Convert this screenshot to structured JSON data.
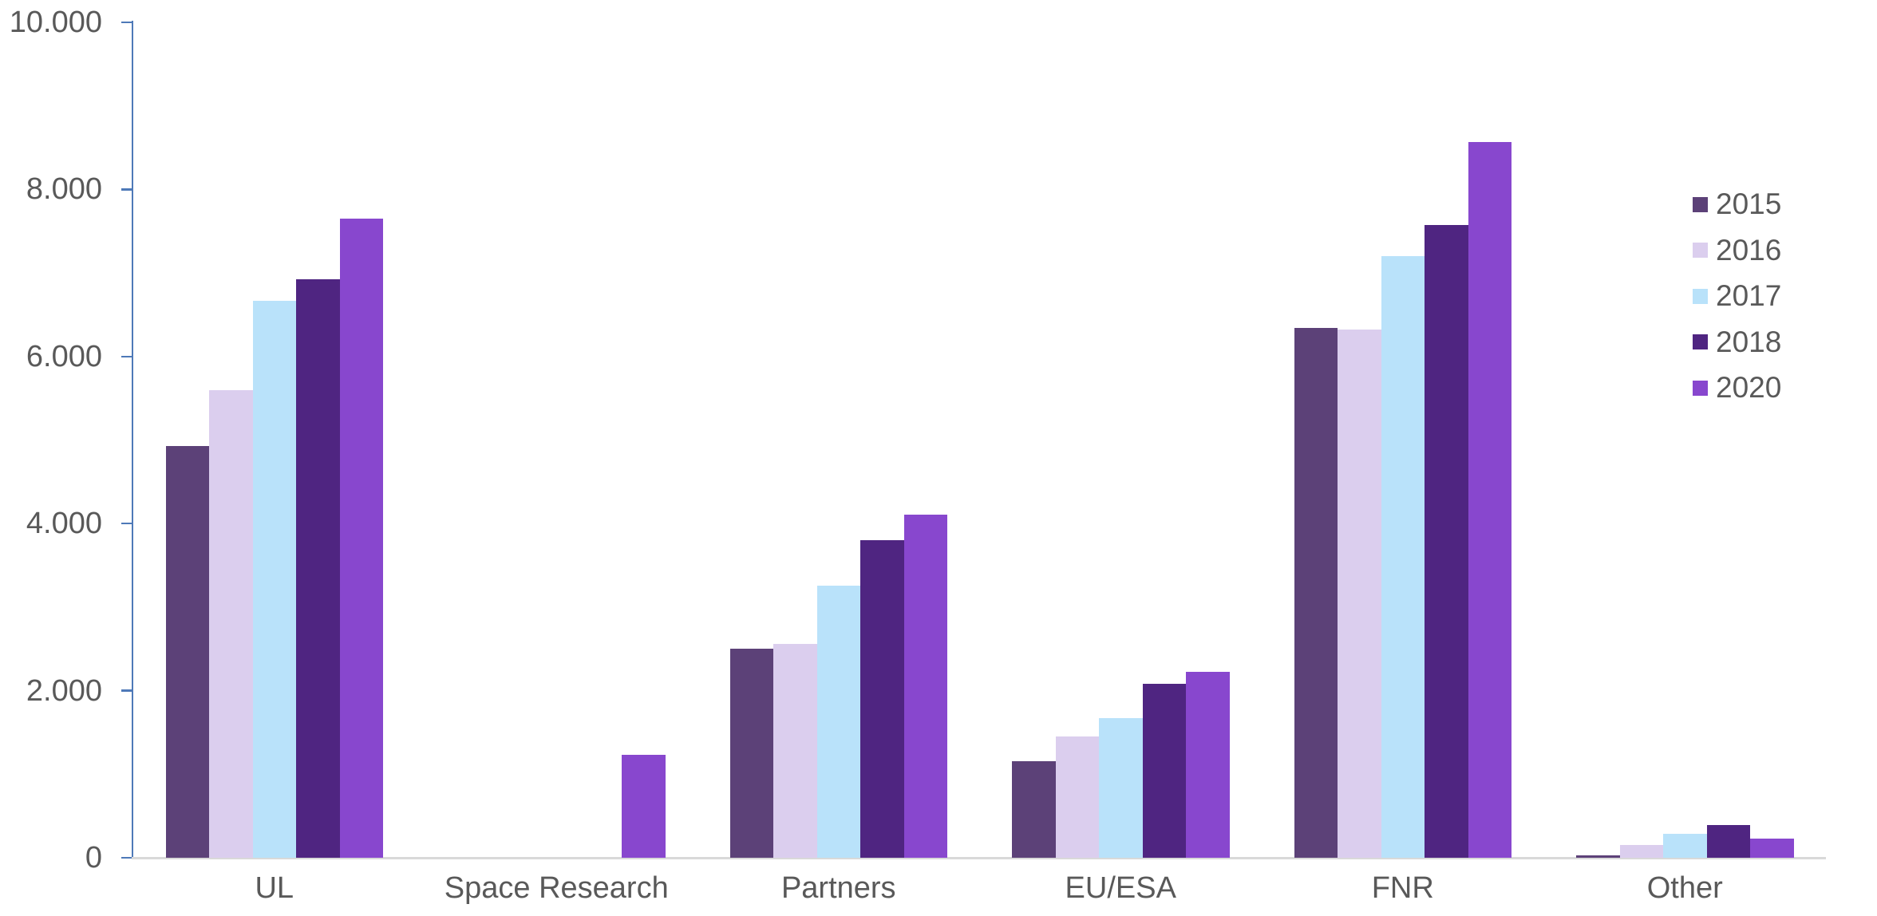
{
  "chart_data": {
    "type": "bar",
    "title": "",
    "xlabel": "",
    "ylabel": "",
    "categories": [
      "UL",
      "Space Research",
      "Partners",
      "EU/ESA",
      "FNR",
      "Other"
    ],
    "series": [
      {
        "name": "2015",
        "color": "#5C4178",
        "values": [
          4930,
          0,
          2500,
          1160,
          6340,
          30
        ]
      },
      {
        "name": "2016",
        "color": "#DBCEEE",
        "values": [
          5600,
          0,
          2560,
          1450,
          6320,
          150
        ]
      },
      {
        "name": "2017",
        "color": "#B9E2FA",
        "values": [
          6670,
          0,
          3260,
          1670,
          7200,
          290
        ]
      },
      {
        "name": "2018",
        "color": "#4F2581",
        "values": [
          6920,
          0,
          3800,
          2080,
          7570,
          390
        ]
      },
      {
        "name": "2020",
        "color": "#8847CE",
        "values": [
          7650,
          1230,
          4110,
          2230,
          8570,
          230
        ]
      }
    ],
    "ylim": [
      0,
      10000
    ],
    "y_ticks": [
      {
        "value": 0,
        "label": "0"
      },
      {
        "value": 2000,
        "label": "2.000"
      },
      {
        "value": 4000,
        "label": "4.000"
      },
      {
        "value": 6000,
        "label": "6.000"
      },
      {
        "value": 8000,
        "label": "8.000"
      },
      {
        "value": 10000,
        "label": "10.000"
      }
    ],
    "grid": false,
    "legend_position": "right",
    "colors": {
      "y_axis_line": "#4E79B8",
      "x_axis_line": "#D9D9D9",
      "label_text": "#595959",
      "background": "#FFFFFF"
    }
  }
}
